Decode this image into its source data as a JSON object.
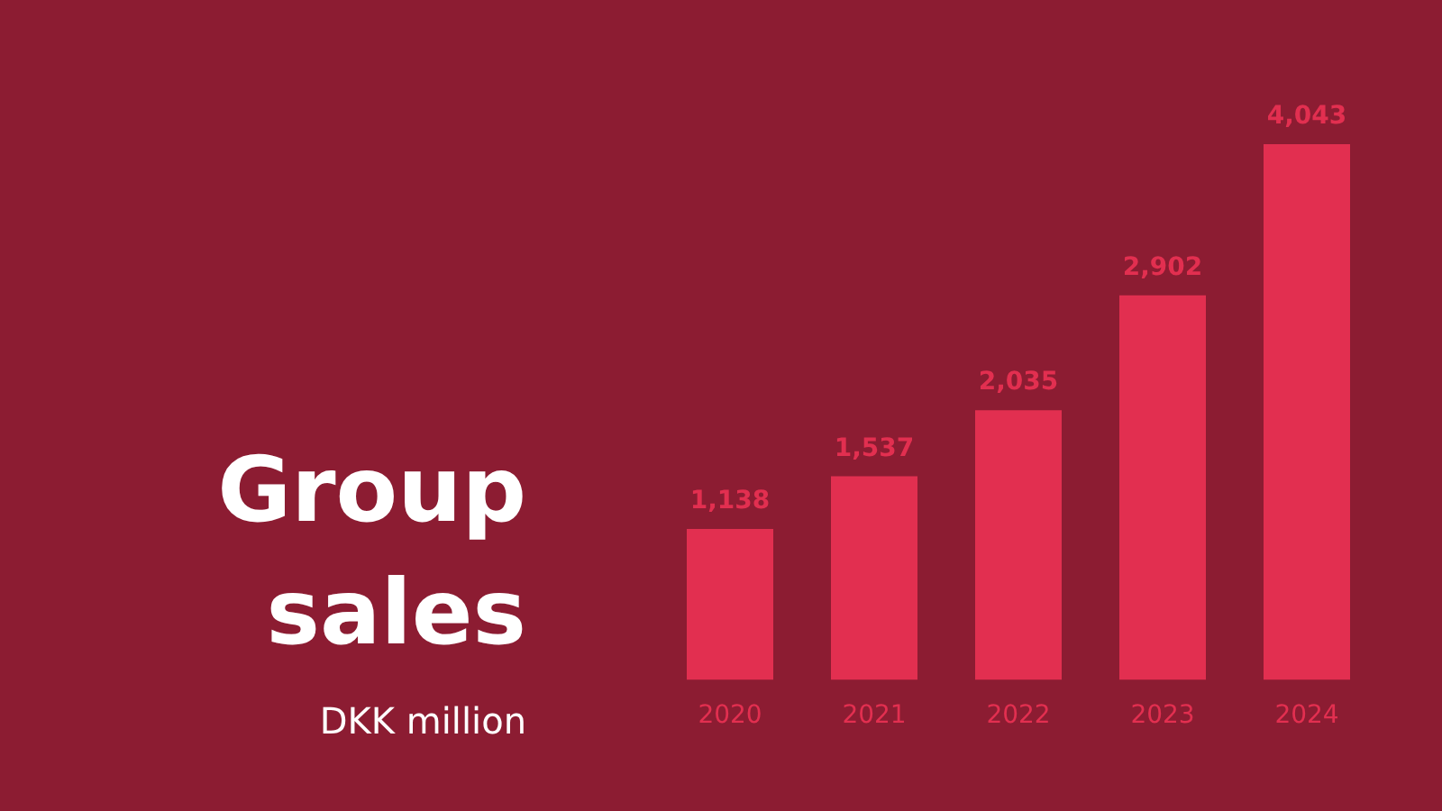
{
  "chart_data": {
    "type": "bar",
    "title": "Group sales",
    "ylabel": "DKK million",
    "categories": [
      "2020",
      "2021",
      "2022",
      "2023",
      "2024"
    ],
    "values": [
      1138,
      1537,
      2035,
      2902,
      4043
    ],
    "value_labels": [
      "1,138",
      "1,537",
      "2,035",
      "2,902",
      "4,043"
    ],
    "color": "#e22f50",
    "tick_labels": "x",
    "grid": false,
    "legend": false
  }
}
